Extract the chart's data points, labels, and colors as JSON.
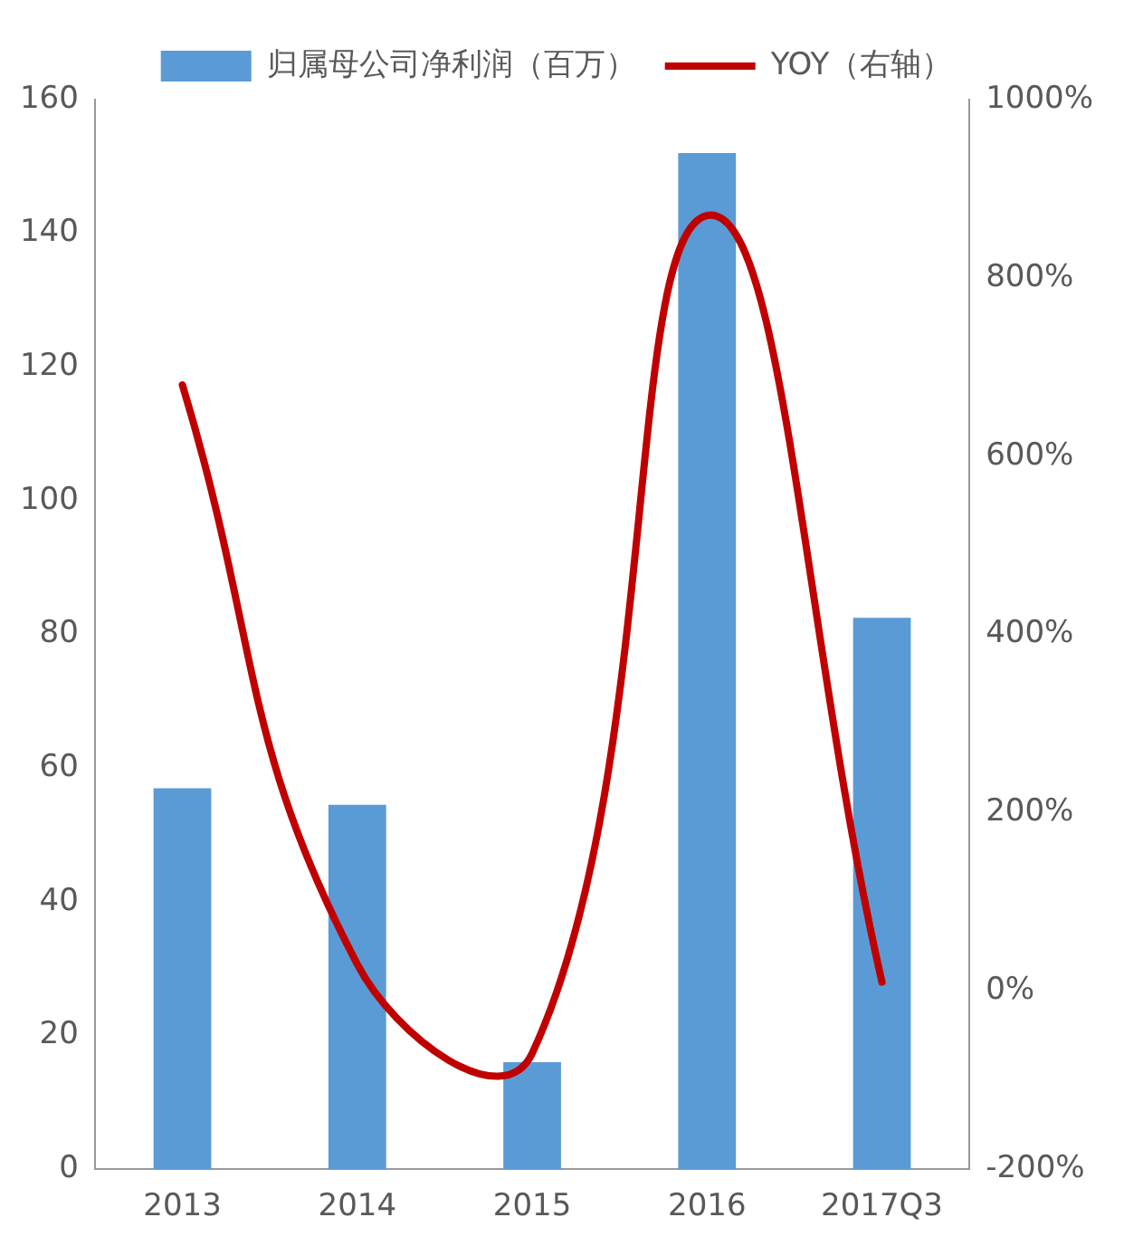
{
  "chart_data": {
    "type": "bar",
    "categories": [
      "2013",
      "2014",
      "2015",
      "2016",
      "2017Q3"
    ],
    "series": [
      {
        "name": "归属母公司净利润（百万）",
        "color": "#5b9bd5",
        "values": [
          57,
          54.5,
          16,
          152,
          82.5
        ]
      },
      {
        "name": "YOY（右轴）",
        "type": "line",
        "axis": "y2",
        "color": "#c00000",
        "values": [
          680,
          30,
          -70,
          870,
          10
        ]
      }
    ],
    "ylim": [
      0,
      160
    ],
    "yticks": [
      0,
      20,
      40,
      60,
      80,
      100,
      120,
      140,
      160
    ],
    "y2lim": [
      -200,
      1000
    ],
    "y2ticks": [
      {
        "value": -200,
        "label": "-200%"
      },
      {
        "value": 0,
        "label": "0%"
      },
      {
        "value": 200,
        "label": "200%"
      },
      {
        "value": 400,
        "label": "400%"
      },
      {
        "value": 600,
        "label": "600%"
      },
      {
        "value": 800,
        "label": "800%"
      },
      {
        "value": 1000,
        "label": "1000%"
      }
    ],
    "grid": false,
    "legend": "top",
    "marker": "none"
  }
}
